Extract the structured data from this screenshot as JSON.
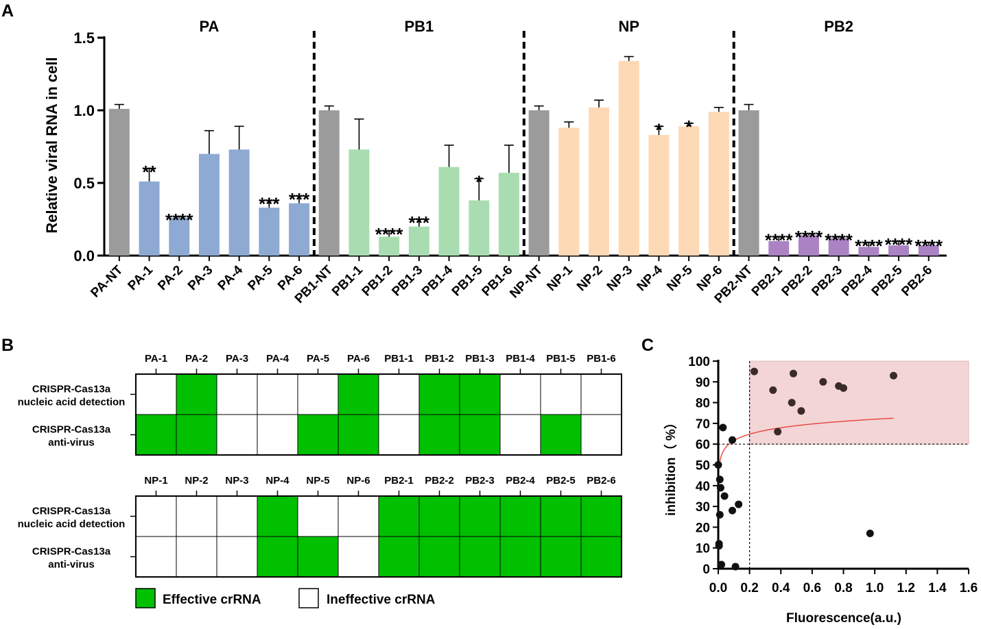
{
  "panel_labels": {
    "a": "A",
    "b": "B",
    "c": "C"
  },
  "chart_data": [
    {
      "panel": "A",
      "type": "bar",
      "ylabel": "Relative viral RNA in cell",
      "ylim": [
        0,
        1.5
      ],
      "yticks": [
        0.0,
        0.5,
        1.0,
        1.5
      ],
      "ytick_labels": [
        "0.0",
        "0.5",
        "1.0",
        "1.5"
      ],
      "groups": [
        {
          "title": "PA",
          "color": "#8eaad3",
          "categories": [
            "PA-NT",
            "PA-1",
            "PA-2",
            "PA-3",
            "PA-4",
            "PA-5",
            "PA-6"
          ],
          "values": [
            1.01,
            0.51,
            0.26,
            0.7,
            0.73,
            0.33,
            0.36
          ],
          "errors": [
            0.03,
            0.09,
            0.01,
            0.16,
            0.16,
            0.05,
            0.05
          ],
          "sig": [
            "",
            "**",
            "****",
            "",
            "",
            "***",
            "***"
          ]
        },
        {
          "title": "PB1",
          "color": "#a9ddb1",
          "categories": [
            "PB1-NT",
            "PB1-1",
            "PB1-2",
            "PB1-3",
            "PB1-4",
            "PB1-5",
            "PB1-6"
          ],
          "values": [
            1.0,
            0.73,
            0.13,
            0.2,
            0.61,
            0.38,
            0.57
          ],
          "errors": [
            0.03,
            0.21,
            0.04,
            0.05,
            0.15,
            0.15,
            0.19
          ],
          "sig": [
            "",
            "",
            "****",
            "***",
            "",
            "*",
            ""
          ]
        },
        {
          "title": "NP",
          "color": "#fdd9b5",
          "categories": [
            "NP-NT",
            "NP-1",
            "NP-2",
            "NP-3",
            "NP-4",
            "NP-5",
            "NP-6"
          ],
          "values": [
            1.0,
            0.88,
            1.02,
            1.34,
            0.83,
            0.89,
            0.99
          ],
          "errors": [
            0.03,
            0.04,
            0.05,
            0.03,
            0.06,
            0.02,
            0.03
          ],
          "sig": [
            "",
            "",
            "",
            "",
            "*",
            "*",
            ""
          ]
        },
        {
          "title": "PB2",
          "color": "#ab83c4",
          "categories": [
            "PB2-NT",
            "PB2-1",
            "PB2-2",
            "PB2-3",
            "PB2-4",
            "PB2-5",
            "PB2-6"
          ],
          "values": [
            1.0,
            0.1,
            0.14,
            0.12,
            0.06,
            0.07,
            0.07
          ],
          "errors": [
            0.04,
            0.03,
            0.01,
            0.01,
            0.03,
            0.03,
            0.02
          ],
          "sig": [
            "",
            "****",
            "****",
            "****",
            "****",
            "****",
            "****"
          ]
        }
      ],
      "nt_color": "#9b9b9b"
    },
    {
      "panel": "B",
      "type": "table",
      "row_labels": [
        [
          "CRISPR-Cas13a",
          "nucleic acid detection"
        ],
        [
          "CRISPR-Cas13a",
          "anti-virus"
        ]
      ],
      "tables": [
        {
          "columns": [
            "PA-1",
            "PA-2",
            "PA-3",
            "PA-4",
            "PA-5",
            "PA-6",
            "PB1-1",
            "PB1-2",
            "PB1-3",
            "PB1-4",
            "PB1-5",
            "PB1-6"
          ],
          "rows": [
            [
              0,
              1,
              0,
              0,
              0,
              1,
              0,
              1,
              1,
              0,
              0,
              0
            ],
            [
              1,
              1,
              0,
              0,
              1,
              1,
              0,
              1,
              1,
              0,
              1,
              0
            ]
          ]
        },
        {
          "columns": [
            "NP-1",
            "NP-2",
            "NP-3",
            "NP-4",
            "NP-5",
            "NP-6",
            "PB2-1",
            "PB2-2",
            "PB2-3",
            "PB2-4",
            "PB2-5",
            "PB2-6"
          ],
          "rows": [
            [
              0,
              0,
              0,
              1,
              0,
              0,
              1,
              1,
              1,
              1,
              1,
              1
            ],
            [
              0,
              0,
              0,
              1,
              1,
              0,
              1,
              1,
              1,
              1,
              1,
              1
            ]
          ]
        }
      ],
      "legend": {
        "effective": "Effective crRNA",
        "ineffective": "Ineffective crRNA"
      },
      "effective_color": "#00c000"
    },
    {
      "panel": "C",
      "type": "scatter",
      "xlabel": "Fluorescence(a.u.)",
      "ylabel": "inhibition（ %）",
      "xlim": [
        0,
        1.6
      ],
      "ylim": [
        0,
        100
      ],
      "xtick_labels": [
        "0.0",
        "0.2",
        "0.4",
        "0.6",
        "0.8",
        "1.0",
        "1.2",
        "1.4",
        "1.6"
      ],
      "ytick_labels": [
        "0",
        "10",
        "20",
        "30",
        "40",
        "50",
        "60",
        "70",
        "80",
        "90",
        "100"
      ],
      "threshold_x": 0.2,
      "threshold_y": 60,
      "region_color": "#f3d5d6",
      "fit_color": "#e8413a",
      "points": [
        [
          0.0,
          50
        ],
        [
          0.01,
          43
        ],
        [
          0.015,
          39
        ],
        [
          0.01,
          26
        ],
        [
          0.005,
          11
        ],
        [
          0.005,
          12
        ],
        [
          0.02,
          2
        ],
        [
          0.03,
          68
        ],
        [
          0.04,
          35
        ],
        [
          0.09,
          62
        ],
        [
          0.09,
          28
        ],
        [
          0.13,
          31
        ],
        [
          0.11,
          1
        ],
        [
          0.23,
          95
        ],
        [
          0.35,
          86
        ],
        [
          0.38,
          66
        ],
        [
          0.48,
          94
        ],
        [
          0.47,
          80
        ],
        [
          0.53,
          76
        ],
        [
          0.67,
          90
        ],
        [
          0.77,
          88
        ],
        [
          0.8,
          87
        ],
        [
          0.97,
          17
        ],
        [
          1.12,
          93
        ]
      ]
    }
  ]
}
